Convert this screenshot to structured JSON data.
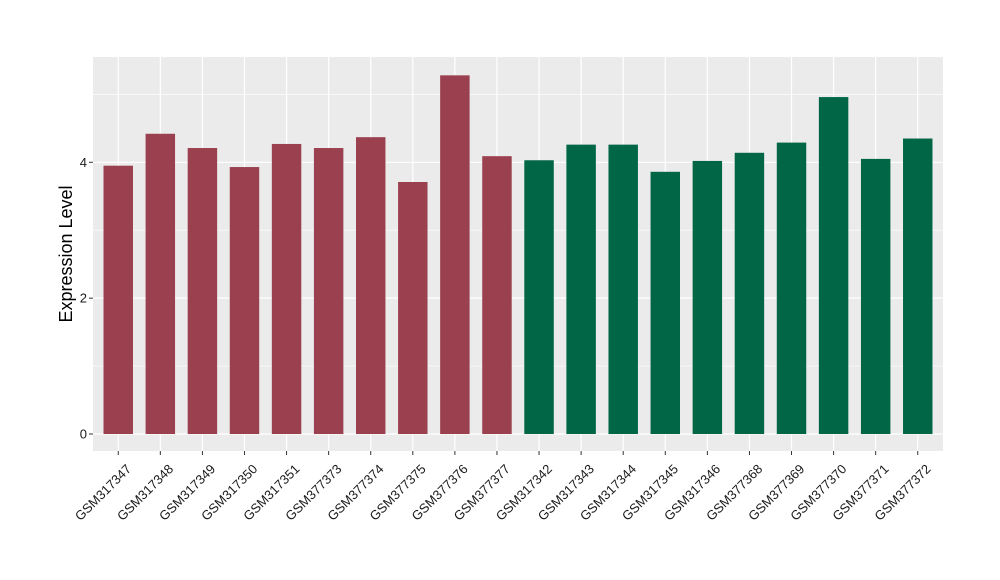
{
  "chart_data": {
    "type": "bar",
    "title": "",
    "xlabel": "",
    "ylabel": "Expression Level",
    "ylim": [
      -0.25,
      5.55
    ],
    "yticks": [
      0,
      2,
      4
    ],
    "grid": true,
    "categories": [
      "GSM317347",
      "GSM317348",
      "GSM317349",
      "GSM317350",
      "GSM317351",
      "GSM377373",
      "GSM377374",
      "GSM377375",
      "GSM377376",
      "GSM377377",
      "GSM317342",
      "GSM317343",
      "GSM317344",
      "GSM317345",
      "GSM317346",
      "GSM377368",
      "GSM377369",
      "GSM377370",
      "GSM377371",
      "GSM377372"
    ],
    "values": [
      3.95,
      4.42,
      4.21,
      3.93,
      4.27,
      4.21,
      4.37,
      3.71,
      5.28,
      4.09,
      4.03,
      4.26,
      4.26,
      3.86,
      4.02,
      4.14,
      4.29,
      4.96,
      4.05,
      4.35
    ],
    "group_colors": [
      "#9b404f",
      "#9b404f",
      "#9b404f",
      "#9b404f",
      "#9b404f",
      "#9b404f",
      "#9b404f",
      "#9b404f",
      "#9b404f",
      "#9b404f",
      "#006645",
      "#006645",
      "#006645",
      "#006645",
      "#006645",
      "#006645",
      "#006645",
      "#006645",
      "#006645",
      "#006645"
    ],
    "panel_background": "#ebebeb",
    "grid_color": "#ffffff"
  }
}
